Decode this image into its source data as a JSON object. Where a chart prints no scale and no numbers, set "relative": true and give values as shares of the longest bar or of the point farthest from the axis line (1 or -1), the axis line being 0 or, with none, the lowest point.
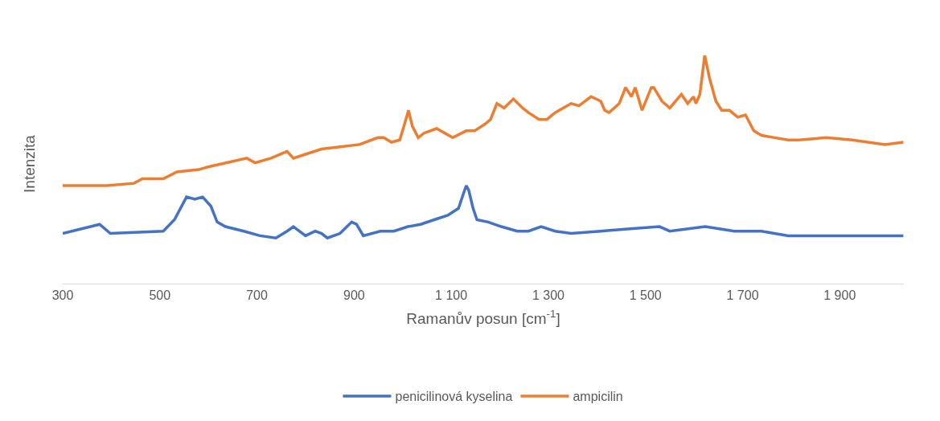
{
  "chart_data": {
    "type": "line",
    "xlabel": "Ramanův posun [cm$^{-1}$]",
    "ylabel": "Intenzita",
    "relative": true,
    "grid": false,
    "legend": "bottom",
    "line_style": "solid",
    "xlim": [
      300,
      2032
    ],
    "xticks": [
      300,
      500,
      700,
      900,
      {
        "value": 1100,
        "label": "1 100"
      },
      {
        "value": 1300,
        "label": "1 300"
      },
      {
        "value": 1500,
        "label": "1 500"
      },
      {
        "value": 1700,
        "label": "1 700"
      },
      {
        "value": 1900,
        "label": "1 900"
      }
    ],
    "series": [
      {
        "name": "penicilinová kyselina",
        "color": "#4472c4",
        "x": [
          300,
          376,
          398,
          507,
          530,
          555,
          572,
          588,
          605,
          618,
          635,
          673,
          706,
          739,
          762,
          775,
          800,
          820,
          833,
          845,
          871,
          895,
          905,
          919,
          954,
          982,
          1011,
          1037,
          1065,
          1093,
          1115,
          1126,
          1131,
          1136,
          1145,
          1153,
          1176,
          1203,
          1236,
          1259,
          1285,
          1314,
          1347,
          1408,
          1463,
          1529,
          1550,
          1623,
          1683,
          1739,
          1794,
          1872,
          1981,
          2031
        ],
        "values": [
          0.22,
          0.26,
          0.22,
          0.23,
          0.28,
          0.38,
          0.37,
          0.38,
          0.34,
          0.27,
          0.25,
          0.23,
          0.21,
          0.2,
          0.23,
          0.25,
          0.21,
          0.23,
          0.22,
          0.2,
          0.22,
          0.27,
          0.26,
          0.21,
          0.23,
          0.23,
          0.25,
          0.26,
          0.28,
          0.3,
          0.33,
          0.4,
          0.43,
          0.41,
          0.33,
          0.28,
          0.27,
          0.25,
          0.23,
          0.23,
          0.25,
          0.23,
          0.22,
          0.23,
          0.24,
          0.25,
          0.23,
          0.25,
          0.23,
          0.23,
          0.21,
          0.21,
          0.21,
          0.21
        ]
      },
      {
        "name": "ampicilin",
        "color": "#ed7d31",
        "x": [
          300,
          341,
          391,
          447,
          464,
          507,
          535,
          580,
          596,
          679,
          696,
          729,
          762,
          775,
          833,
          871,
          911,
          949,
          961,
          977,
          994,
          1004,
          1012,
          1020,
          1032,
          1044,
          1070,
          1103,
          1131,
          1148,
          1170,
          1181,
          1194,
          1209,
          1228,
          1247,
          1259,
          1281,
          1297,
          1314,
          1347,
          1363,
          1388,
          1408,
          1416,
          1425,
          1446,
          1459,
          1471,
          1479,
          1493,
          1512,
          1517,
          1534,
          1550,
          1574,
          1587,
          1599,
          1604,
          1612,
          1622,
          1632,
          1645,
          1657,
          1673,
          1690,
          1706,
          1723,
          1739,
          1766,
          1794,
          1815,
          1872,
          1926,
          1993,
          2031
        ],
        "values": [
          0.43,
          0.43,
          0.43,
          0.44,
          0.46,
          0.46,
          0.49,
          0.5,
          0.51,
          0.55,
          0.53,
          0.55,
          0.58,
          0.55,
          0.59,
          0.6,
          0.61,
          0.64,
          0.64,
          0.62,
          0.63,
          0.7,
          0.76,
          0.69,
          0.64,
          0.66,
          0.68,
          0.64,
          0.67,
          0.67,
          0.7,
          0.72,
          0.79,
          0.77,
          0.81,
          0.77,
          0.75,
          0.72,
          0.72,
          0.75,
          0.79,
          0.78,
          0.82,
          0.8,
          0.76,
          0.75,
          0.79,
          0.86,
          0.82,
          0.86,
          0.76,
          0.86,
          0.86,
          0.8,
          0.77,
          0.83,
          0.79,
          0.82,
          0.79,
          0.83,
          1.0,
          0.9,
          0.8,
          0.76,
          0.76,
          0.73,
          0.74,
          0.67,
          0.65,
          0.64,
          0.63,
          0.63,
          0.64,
          0.63,
          0.61,
          0.62
        ]
      }
    ]
  }
}
